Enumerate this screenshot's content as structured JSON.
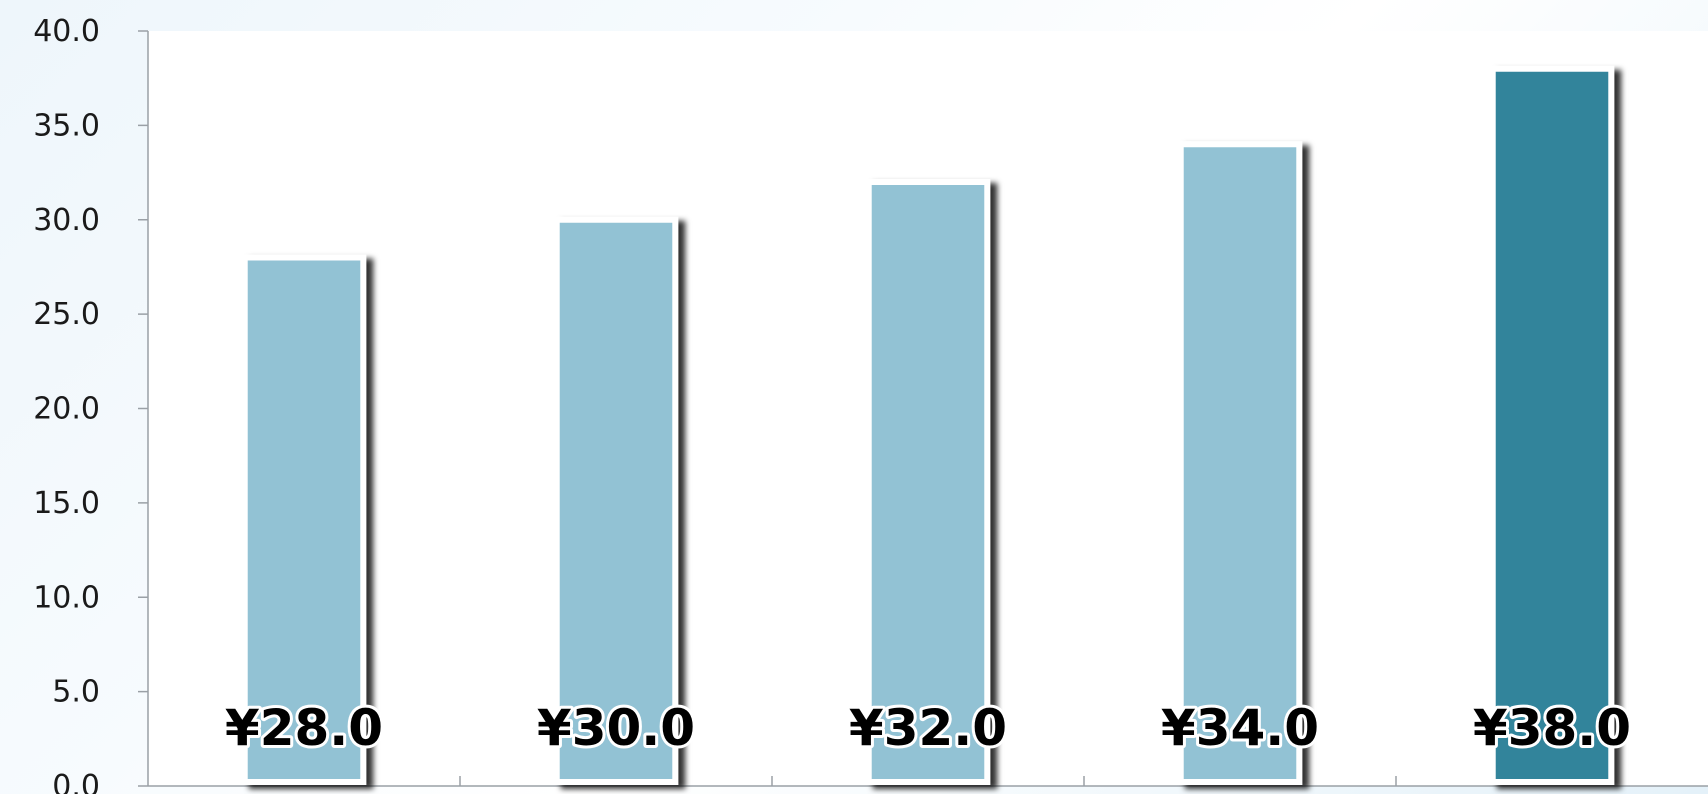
{
  "chart_data": {
    "type": "bar",
    "categories": [
      "",
      "",
      "",
      "",
      ""
    ],
    "values": [
      28.0,
      30.0,
      32.0,
      34.0,
      38.0
    ],
    "data_labels": [
      "¥28.0",
      "¥30.0",
      "¥32.0",
      "¥34.0",
      "¥38.0"
    ],
    "yticks": [
      "0.0",
      "5.0",
      "10.0",
      "15.0",
      "20.0",
      "25.0",
      "30.0",
      "35.0",
      "40.0"
    ],
    "ylim": [
      0,
      40
    ],
    "title": "",
    "xlabel": "",
    "ylabel": "",
    "grid": false,
    "legend": "none",
    "colors": {
      "bar": "#92c2d4",
      "highlight": "#33849b",
      "bar_outline": "#ffffff",
      "axis": "#9aa0a6",
      "plot_background": "#ffffff"
    },
    "highlight_index": 4
  }
}
